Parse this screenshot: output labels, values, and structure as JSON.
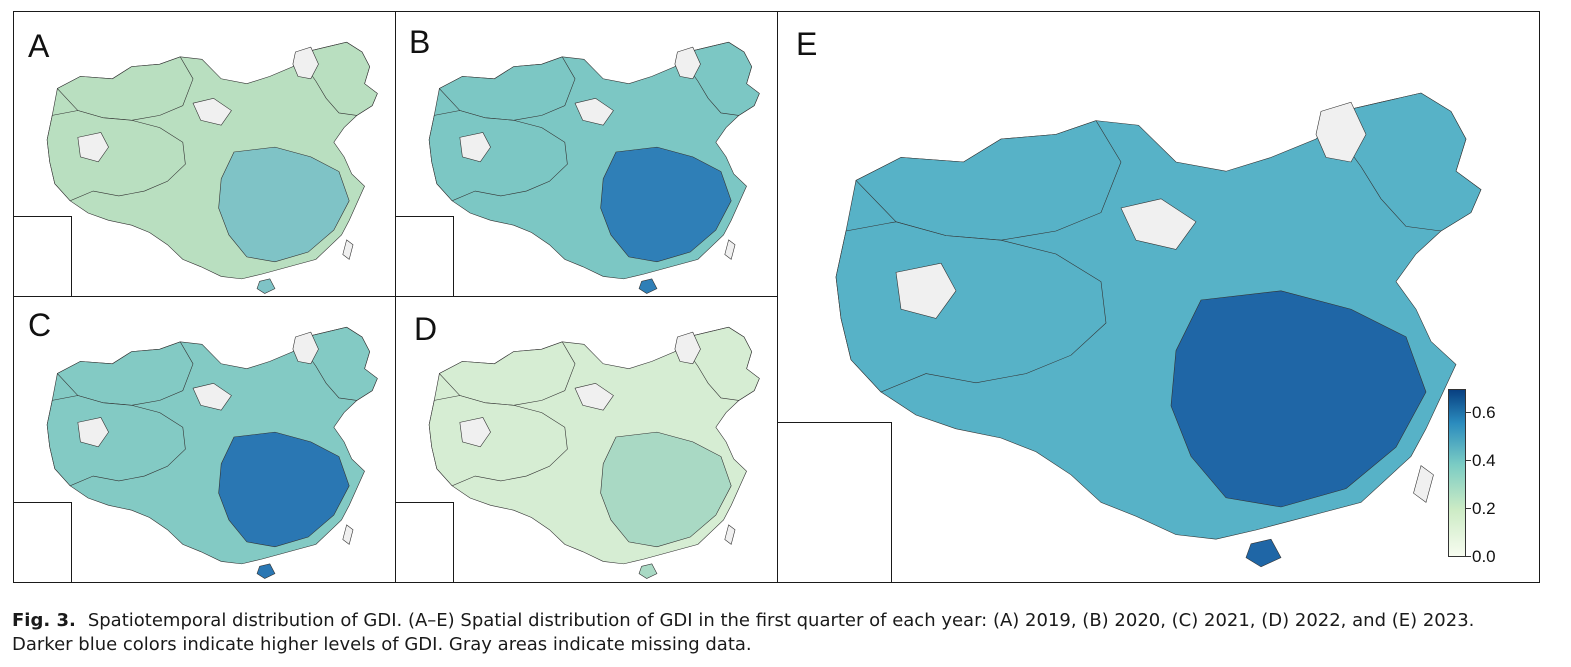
{
  "panels": [
    {
      "letter": "A",
      "year": "2019",
      "fill": "#b9dfc0",
      "dark": "#7fc3c6"
    },
    {
      "letter": "B",
      "year": "2020",
      "fill": "#7cc7c4",
      "dark": "#2f7fb7"
    },
    {
      "letter": "C",
      "year": "2021",
      "fill": "#83cac4",
      "dark": "#2a77b3"
    },
    {
      "letter": "D",
      "year": "2022",
      "fill": "#d6edd3",
      "dark": "#a9d9c4"
    },
    {
      "letter": "E",
      "year": "2023",
      "fill": "#57b2c7",
      "dark": "#1f66a6"
    }
  ],
  "missing_color": "#f0f0f0",
  "colorbar": {
    "ticks": [
      "0.6",
      "0.4",
      "0.2",
      "0.0"
    ],
    "range": [
      0.0,
      0.7
    ],
    "colors": [
      "#f7fcf0",
      "#ccebc5",
      "#7bccc4",
      "#2b8cbe",
      "#084081"
    ]
  },
  "caption": {
    "label": "Fig. 3.",
    "line1": "Spatiotemporal distribution of GDI. (A–E) Spatial distribution of GDI in the first quarter of each year: (A) 2019, (B) 2020, (C) 2021, (D) 2022, and (E) 2023.",
    "line2": "Darker blue colors indicate higher levels of GDI. Gray areas indicate missing data."
  }
}
